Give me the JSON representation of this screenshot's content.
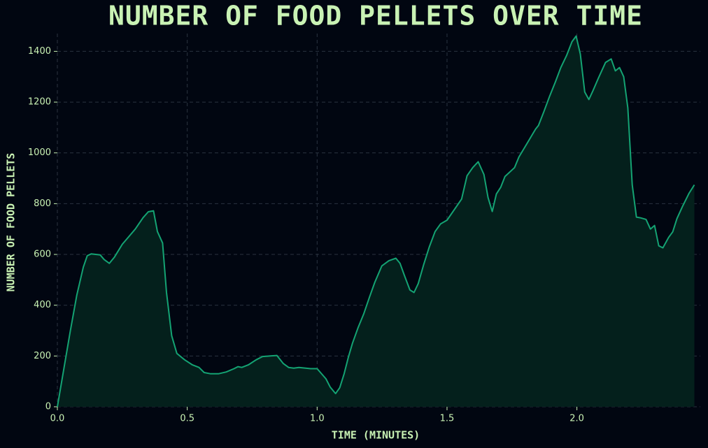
{
  "chart_data": {
    "type": "line",
    "title": "NUMBER OF FOOD PELLETS OVER TIME",
    "xlabel": "TIME (MINUTES)",
    "ylabel": "NUMBER OF FOOD PELLETS",
    "color": "#14a373",
    "area_color": "#04201c",
    "grid": true,
    "xlim": [
      0,
      2.475
    ],
    "ylim": [
      0,
      1470
    ],
    "xticks": [
      {
        "value": 0,
        "label": "0.0"
      },
      0.5,
      {
        "value": 1,
        "label": "1.0"
      },
      1.5,
      {
        "value": 2,
        "label": "2.0"
      }
    ],
    "yticks": [
      0,
      200,
      400,
      600,
      800,
      1000,
      1200,
      1400
    ],
    "x": [
      0.0,
      0.025,
      0.05,
      0.075,
      0.1,
      0.115,
      0.13,
      0.165,
      0.18,
      0.2,
      0.22,
      0.25,
      0.275,
      0.3,
      0.33,
      0.35,
      0.37,
      0.385,
      0.405,
      0.42,
      0.44,
      0.46,
      0.49,
      0.52,
      0.545,
      0.565,
      0.59,
      0.62,
      0.65,
      0.68,
      0.695,
      0.71,
      0.735,
      0.765,
      0.79,
      0.82,
      0.845,
      0.87,
      0.89,
      0.91,
      0.93,
      0.975,
      1.0,
      1.034,
      1.05,
      1.066,
      1.071,
      1.087,
      1.104,
      1.12,
      1.136,
      1.157,
      1.179,
      1.201,
      1.222,
      1.249,
      1.276,
      1.303,
      1.319,
      1.335,
      1.357,
      1.373,
      1.389,
      1.41,
      1.432,
      1.454,
      1.475,
      1.5,
      1.556,
      1.577,
      1.599,
      1.62,
      1.642,
      1.658,
      1.674,
      1.69,
      1.707,
      1.723,
      1.76,
      1.777,
      1.798,
      1.82,
      1.841,
      1.852,
      1.873,
      1.895,
      1.917,
      1.938,
      1.96,
      1.981,
      1.997,
      2.013,
      2.03,
      2.046,
      2.062,
      2.083,
      2.11,
      2.132,
      2.148,
      2.164,
      2.18,
      2.196,
      2.213,
      2.229,
      2.245,
      2.266,
      2.283,
      2.299,
      2.315,
      2.331,
      2.353,
      2.369,
      2.385,
      2.406,
      2.431,
      2.452
    ],
    "values": [
      0,
      150,
      300,
      440,
      550,
      595,
      602,
      598,
      580,
      565,
      590,
      640,
      670,
      700,
      745,
      768,
      772,
      690,
      645,
      450,
      280,
      210,
      185,
      165,
      155,
      135,
      130,
      130,
      137,
      150,
      158,
      155,
      165,
      185,
      198,
      200,
      202,
      170,
      155,
      152,
      155,
      150,
      150,
      110,
      78,
      58,
      52,
      75,
      130,
      195,
      250,
      310,
      365,
      430,
      490,
      555,
      575,
      585,
      565,
      520,
      460,
      450,
      485,
      560,
      630,
      690,
      720,
      735,
      818,
      910,
      942,
      965,
      915,
      824,
      769,
      838,
      865,
      907,
      942,
      984,
      1020,
      1058,
      1094,
      1108,
      1163,
      1223,
      1279,
      1336,
      1383,
      1438,
      1460,
      1389,
      1240,
      1210,
      1245,
      1295,
      1356,
      1370,
      1323,
      1336,
      1300,
      1177,
      874,
      747,
      744,
      738,
      700,
      714,
      634,
      626,
      667,
      689,
      741,
      788,
      840,
      874
    ]
  }
}
